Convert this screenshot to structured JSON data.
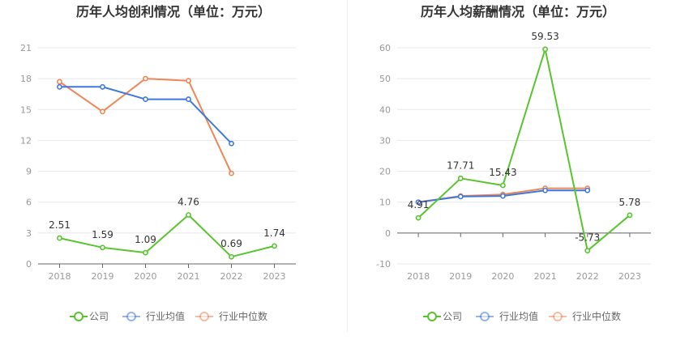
{
  "colors": {
    "company": "#58c52e",
    "industry_avg": "#3f78dc",
    "industry_median": "#ee8756",
    "grid": "#e6e8ee",
    "axis": "#666666",
    "tick_label": "#999999",
    "title": "#333333"
  },
  "legend": {
    "company": "公司",
    "industry_avg": "行业均值",
    "industry_median": "行业中位数"
  },
  "chart_data": [
    {
      "type": "line",
      "title": "历年人均创利情况（单位：万元）",
      "categories": [
        "2018",
        "2019",
        "2020",
        "2021",
        "2022",
        "2023"
      ],
      "ylim": [
        0,
        21
      ],
      "yticks": [
        0,
        3,
        6,
        9,
        12,
        15,
        18,
        21
      ],
      "grid": true,
      "legend_position": "bottom",
      "series": [
        {
          "name": "公司",
          "key": "company",
          "values": [
            2.51,
            1.59,
            1.09,
            4.76,
            0.69,
            1.74
          ],
          "labels": [
            "2.51",
            "1.59",
            "1.09",
            "4.76",
            "0.69",
            "1.74"
          ]
        },
        {
          "name": "行业均值",
          "key": "industry_avg",
          "values": [
            17.2,
            17.2,
            16.0,
            16.0,
            11.7,
            null
          ]
        },
        {
          "name": "行业中位数",
          "key": "industry_median",
          "values": [
            17.7,
            14.8,
            18.0,
            17.8,
            8.8,
            null
          ]
        }
      ]
    },
    {
      "type": "line",
      "title": "历年人均薪酬情况（单位：万元）",
      "categories": [
        "2018",
        "2019",
        "2020",
        "2021",
        "2022",
        "2023"
      ],
      "ylim": [
        -10,
        60
      ],
      "yticks": [
        -10,
        0,
        10,
        20,
        30,
        40,
        50,
        60
      ],
      "grid": true,
      "legend_position": "bottom",
      "series": [
        {
          "name": "公司",
          "key": "company",
          "values": [
            4.91,
            17.71,
            15.43,
            59.53,
            -5.73,
            5.78
          ],
          "labels": [
            "4.91",
            "17.71",
            "15.43",
            "59.53",
            "-5.73",
            "5.78"
          ]
        },
        {
          "name": "行业均值",
          "key": "industry_avg",
          "values": [
            10.0,
            11.8,
            12.0,
            13.8,
            13.8,
            null
          ]
        },
        {
          "name": "行业中位数",
          "key": "industry_median",
          "values": [
            10.0,
            12.0,
            12.5,
            14.5,
            14.5,
            null
          ]
        }
      ]
    }
  ]
}
